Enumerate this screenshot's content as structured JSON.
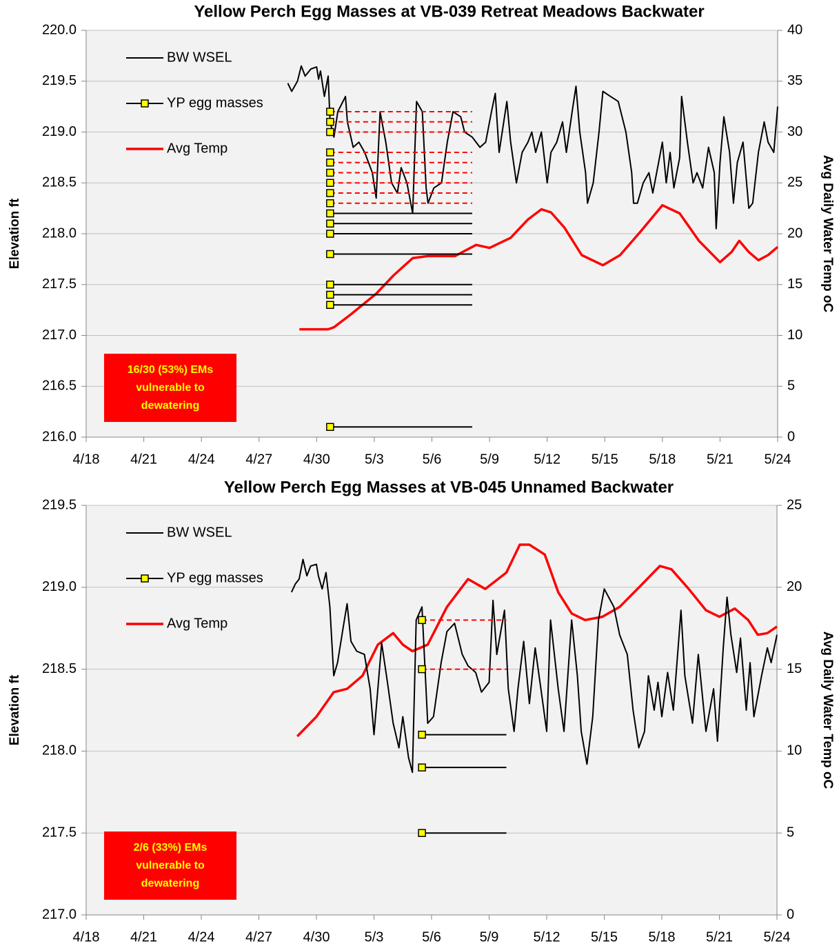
{
  "chart_data": [
    {
      "type": "line",
      "title": "Yellow Perch Egg Masses at VB-039 Retreat Meadows Backwater",
      "ylabel": "Elevation ft",
      "y2label": "Avg Daily Water Temp oC",
      "xlim": [
        108,
        144
      ],
      "xticks": [
        {
          "value": 108,
          "label": "4/18"
        },
        {
          "value": 111,
          "label": "4/21"
        },
        {
          "value": 114,
          "label": "4/24"
        },
        {
          "value": 117,
          "label": "4/27"
        },
        {
          "value": 120,
          "label": "4/30"
        },
        {
          "value": 123,
          "label": "5/3"
        },
        {
          "value": 126,
          "label": "5/6"
        },
        {
          "value": 129,
          "label": "5/9"
        },
        {
          "value": 132,
          "label": "5/12"
        },
        {
          "value": 135,
          "label": "5/15"
        },
        {
          "value": 138,
          "label": "5/18"
        },
        {
          "value": 141,
          "label": "5/21"
        },
        {
          "value": 144,
          "label": "5/24"
        }
      ],
      "ylim": [
        216,
        220
      ],
      "yticks": [
        {
          "value": 216,
          "label": "216.0"
        },
        216.5,
        {
          "value": 217,
          "label": "217.0"
        },
        217.5,
        {
          "value": 218,
          "label": "218.0"
        },
        218.5,
        {
          "value": 219,
          "label": "219.0"
        },
        219.5,
        {
          "value": 220,
          "label": "220.0"
        }
      ],
      "y2lim": [
        0,
        40
      ],
      "y2ticks": [
        0,
        5,
        10,
        15,
        20,
        25,
        30,
        35,
        40
      ],
      "grid": true,
      "legend": "upper left",
      "series": [
        {
          "name": "BW WSEL",
          "color": "#000000",
          "x": [
            118.5,
            118.7,
            119.0,
            119.2,
            119.4,
            119.7,
            120.0,
            120.1,
            120.2,
            120.4,
            120.6,
            120.7,
            120.9,
            121.1,
            121.5,
            121.6,
            121.9,
            122.2,
            122.5,
            122.9,
            123.1,
            123.3,
            123.6,
            123.9,
            124.2,
            124.4,
            124.7,
            125.0,
            125.2,
            125.5,
            125.7,
            125.8,
            126.1,
            126.5,
            126.8,
            127.1,
            127.5,
            127.7,
            128.1,
            128.5,
            128.8,
            129.1,
            129.3,
            129.5,
            129.9,
            130.1,
            130.4,
            130.7,
            131.0,
            131.2,
            131.4,
            131.7,
            132.0,
            132.2,
            132.5,
            132.8,
            133.0,
            133.3,
            133.5,
            133.7,
            134.0,
            134.1,
            134.4,
            134.7,
            134.9,
            135.3,
            135.7,
            136.1,
            136.4,
            136.5,
            136.7,
            137.0,
            137.3,
            137.5,
            137.8,
            138.0,
            138.2,
            138.4,
            138.6,
            138.9,
            139.0,
            139.3,
            139.6,
            139.8,
            140.1,
            140.4,
            140.7,
            140.8,
            141.0,
            141.2,
            141.5,
            141.7,
            141.9,
            142.2,
            142.5,
            142.7,
            143.0,
            143.3,
            143.5,
            143.8,
            144.0
          ],
          "values": [
            219.48,
            219.4,
            219.5,
            219.65,
            219.55,
            219.62,
            219.64,
            219.52,
            219.6,
            219.35,
            219.55,
            219.1,
            218.95,
            219.2,
            219.35,
            219.1,
            218.85,
            218.9,
            218.8,
            218.6,
            218.35,
            219.2,
            218.9,
            218.5,
            218.4,
            218.65,
            218.5,
            218.2,
            219.3,
            219.2,
            218.45,
            218.3,
            218.45,
            218.5,
            218.9,
            219.2,
            219.15,
            219.0,
            218.95,
            218.85,
            218.9,
            219.2,
            219.38,
            218.8,
            219.3,
            218.9,
            218.5,
            218.8,
            218.9,
            219.0,
            218.8,
            219.0,
            218.5,
            218.8,
            218.9,
            219.1,
            218.8,
            219.2,
            219.45,
            219.0,
            218.6,
            218.3,
            218.5,
            219.0,
            219.4,
            219.35,
            219.3,
            219.0,
            218.6,
            218.3,
            218.3,
            218.5,
            218.6,
            218.4,
            218.7,
            218.9,
            218.5,
            218.8,
            218.45,
            218.75,
            219.35,
            218.9,
            218.5,
            218.6,
            218.45,
            218.85,
            218.6,
            218.05,
            218.7,
            219.15,
            218.8,
            218.3,
            218.7,
            218.9,
            218.25,
            218.3,
            218.8,
            219.1,
            218.9,
            218.8,
            219.25
          ]
        },
        {
          "name": "YP egg masses",
          "color": "#ffff00",
          "marker": "square",
          "x": [
            120.7,
            120.7,
            120.7,
            120.7,
            120.7,
            120.7,
            120.7,
            120.7,
            120.7,
            120.7,
            120.7,
            120.7,
            120.7,
            120.7,
            120.7,
            120.7,
            120.7
          ],
          "values": [
            219.2,
            219.1,
            219.0,
            218.8,
            218.7,
            218.6,
            218.5,
            218.4,
            218.3,
            218.2,
            218.1,
            218.0,
            217.8,
            217.5,
            217.4,
            217.3,
            216.1
          ],
          "line_end": [
            128.1,
            128.1,
            128.1,
            128.1,
            128.1,
            128.1,
            128.1,
            128.1,
            128.1,
            128.1,
            128.1,
            128.1,
            128.1,
            128.1,
            128.1,
            128.1,
            128.1
          ],
          "line_styles": [
            "dashed",
            "dashed",
            "dashed",
            "dashed",
            "dashed",
            "dashed",
            "dashed",
            "dashed",
            "dashed",
            "solid",
            "solid",
            "solid",
            "solid",
            "solid",
            "solid",
            "solid",
            "solid"
          ],
          "line_colors": [
            "#ff0000",
            "#ff0000",
            "#ff0000",
            "#ff0000",
            "#ff0000",
            "#ff0000",
            "#ff0000",
            "#ff0000",
            "#ff0000",
            "#000000",
            "#000000",
            "#000000",
            "#000000",
            "#000000",
            "#000000",
            "#000000",
            "#000000"
          ]
        },
        {
          "name": "Avg Temp",
          "color": "#ff0000",
          "axis": "y2",
          "x": [
            119.1,
            120.6,
            120.9,
            121.8,
            123.1,
            124.0,
            125.0,
            125.8,
            127.2,
            128.3,
            129.0,
            130.1,
            131.0,
            131.7,
            132.2,
            132.9,
            133.8,
            134.9,
            135.8,
            136.9,
            138.0,
            138.9,
            139.9,
            141.0,
            141.6,
            142.0,
            142.5,
            143.0,
            143.5,
            144.0
          ],
          "values": [
            10.6,
            10.6,
            10.8,
            12.1,
            14.1,
            15.9,
            17.6,
            17.8,
            17.8,
            18.9,
            18.6,
            19.6,
            21.4,
            22.4,
            22.1,
            20.6,
            17.9,
            16.9,
            17.9,
            20.3,
            22.8,
            22.0,
            19.3,
            17.2,
            18.2,
            19.3,
            18.2,
            17.4,
            17.9,
            18.7
          ]
        }
      ],
      "annotation": [
        "16/30 (53%) EMs",
        "vulnerable to",
        "dewatering"
      ]
    },
    {
      "type": "line",
      "title": "Yellow Perch Egg Masses at VB-045 Unnamed Backwater",
      "ylabel": "Elevation ft",
      "y2label": "Avg Daily Water Temp oC",
      "xlim": [
        108,
        144
      ],
      "xticks": [
        {
          "value": 108,
          "label": "4/18"
        },
        {
          "value": 111,
          "label": "4/21"
        },
        {
          "value": 114,
          "label": "4/24"
        },
        {
          "value": 117,
          "label": "4/27"
        },
        {
          "value": 120,
          "label": "4/30"
        },
        {
          "value": 123,
          "label": "5/3"
        },
        {
          "value": 126,
          "label": "5/6"
        },
        {
          "value": 129,
          "label": "5/9"
        },
        {
          "value": 132,
          "label": "5/12"
        },
        {
          "value": 135,
          "label": "5/15"
        },
        {
          "value": 138,
          "label": "5/18"
        },
        {
          "value": 141,
          "label": "5/21"
        },
        {
          "value": 144,
          "label": "5/24"
        }
      ],
      "ylim": [
        217,
        219.5
      ],
      "yticks": [
        {
          "value": 217,
          "label": "217.0"
        },
        217.5,
        {
          "value": 218,
          "label": "218.0"
        },
        218.5,
        {
          "value": 219,
          "label": "219.0"
        },
        219.5
      ],
      "y2lim": [
        0,
        25
      ],
      "y2ticks": [
        0,
        5,
        10,
        15,
        20,
        25
      ],
      "grid": true,
      "legend": "upper left",
      "series": [
        {
          "name": "BW WSEL",
          "color": "#000000",
          "x": [
            118.7,
            118.9,
            119.1,
            119.3,
            119.5,
            119.7,
            120.0,
            120.1,
            120.3,
            120.5,
            120.7,
            120.9,
            121.1,
            121.4,
            121.6,
            121.8,
            122.1,
            122.5,
            122.8,
            123.0,
            123.2,
            123.4,
            123.7,
            124.0,
            124.3,
            124.5,
            124.8,
            125.0,
            125.2,
            125.5,
            125.8,
            126.1,
            126.5,
            126.8,
            127.2,
            127.6,
            127.9,
            128.3,
            128.6,
            129.0,
            129.2,
            129.4,
            129.8,
            130.0,
            130.3,
            130.5,
            130.8,
            131.1,
            131.4,
            131.7,
            132.0,
            132.2,
            132.6,
            132.9,
            133.3,
            133.6,
            133.8,
            134.1,
            134.4,
            134.7,
            135.0,
            135.5,
            135.8,
            136.2,
            136.5,
            136.8,
            137.1,
            137.3,
            137.6,
            137.8,
            138.0,
            138.3,
            138.6,
            139.0,
            139.2,
            139.6,
            139.9,
            140.3,
            140.7,
            140.9,
            141.2,
            141.4,
            141.6,
            141.9,
            142.1,
            142.4,
            142.6,
            142.8,
            143.2,
            143.5,
            143.7,
            144.0
          ],
          "values": [
            218.97,
            219.02,
            219.05,
            219.17,
            219.07,
            219.13,
            219.14,
            219.07,
            218.99,
            219.09,
            218.88,
            218.46,
            218.54,
            218.76,
            218.9,
            218.67,
            218.61,
            218.59,
            218.38,
            218.1,
            218.38,
            218.66,
            218.42,
            218.17,
            218.02,
            218.21,
            217.96,
            217.87,
            218.8,
            218.88,
            218.17,
            218.21,
            218.54,
            218.73,
            218.78,
            218.59,
            218.52,
            218.48,
            218.36,
            218.42,
            218.92,
            218.59,
            218.86,
            218.38,
            218.12,
            218.38,
            218.67,
            218.29,
            218.63,
            218.38,
            218.12,
            218.8,
            218.38,
            218.12,
            218.8,
            218.46,
            218.12,
            217.92,
            218.21,
            218.8,
            218.99,
            218.88,
            218.71,
            218.59,
            218.25,
            218.02,
            218.12,
            218.46,
            218.25,
            218.42,
            218.21,
            218.48,
            218.25,
            218.86,
            218.46,
            218.17,
            218.59,
            218.12,
            218.38,
            218.06,
            218.63,
            218.94,
            218.71,
            218.48,
            218.69,
            218.25,
            218.54,
            218.21,
            218.46,
            218.63,
            218.54,
            218.71
          ]
        },
        {
          "name": "YP egg masses",
          "color": "#ffff00",
          "marker": "square",
          "x": [
            125.5,
            125.5,
            125.5,
            125.5,
            125.5
          ],
          "values": [
            218.8,
            218.5,
            218.1,
            217.9,
            217.5
          ],
          "line_end": [
            129.9,
            129.9,
            129.9,
            129.9,
            129.9
          ],
          "line_styles": [
            "dashed",
            "dashed",
            "solid",
            "solid",
            "solid"
          ],
          "line_colors": [
            "#ff0000",
            "#ff0000",
            "#000000",
            "#000000",
            "#000000"
          ]
        },
        {
          "name": "Avg Temp",
          "color": "#ff0000",
          "axis": "y2",
          "x": [
            119.0,
            120.0,
            120.9,
            121.6,
            122.4,
            123.2,
            124.0,
            124.5,
            125.0,
            125.8,
            126.8,
            127.9,
            128.8,
            129.9,
            130.6,
            131.1,
            131.9,
            132.6,
            133.3,
            134.0,
            134.9,
            135.8,
            136.9,
            137.9,
            138.5,
            139.4,
            140.3,
            141.0,
            141.8,
            142.5,
            143.0,
            143.5,
            144.0
          ],
          "values": [
            10.9,
            12.1,
            13.6,
            13.8,
            14.6,
            16.5,
            17.2,
            16.5,
            16.1,
            16.5,
            18.8,
            20.5,
            19.9,
            20.9,
            22.6,
            22.6,
            22.0,
            19.7,
            18.4,
            18.0,
            18.2,
            18.8,
            20.1,
            21.3,
            21.1,
            19.9,
            18.6,
            18.2,
            18.7,
            18.0,
            17.1,
            17.2,
            17.6
          ]
        }
      ],
      "annotation": [
        "2/6 (33%) EMs",
        "vulnerable to",
        "dewatering"
      ]
    }
  ]
}
